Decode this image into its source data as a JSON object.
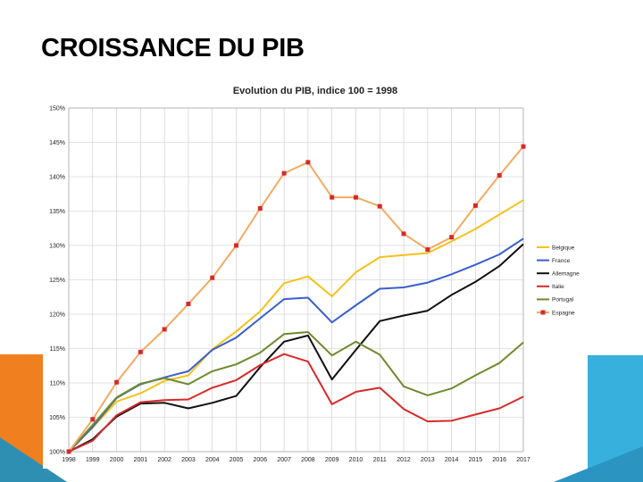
{
  "slide": {
    "title": "CROISSANCE DU PIB"
  },
  "chart_data": {
    "type": "line",
    "title": "Evolution du PIB, indice 100 = 1998",
    "xlabel": "",
    "ylabel": "",
    "ylim": [
      100,
      150
    ],
    "y_ticks": [
      "100%",
      "105%",
      "110%",
      "115%",
      "120%",
      "125%",
      "130%",
      "135%",
      "140%",
      "145%",
      "150%"
    ],
    "grid": true,
    "legend_position": "right",
    "categories": [
      "1998",
      "1999",
      "2000",
      "2001",
      "2002",
      "2003",
      "2004",
      "2005",
      "2006",
      "2007",
      "2008",
      "2009",
      "2010",
      "2011",
      "2012",
      "2013",
      "2014",
      "2015",
      "2016",
      "2017"
    ],
    "series": [
      {
        "name": "Belgique",
        "color": "#f5c21b",
        "marker": "none",
        "values": [
          100,
          103.5,
          107.3,
          108.5,
          110.3,
          111.1,
          114.9,
          117.5,
          120.4,
          124.5,
          125.5,
          122.6,
          126.1,
          128.3,
          128.6,
          128.9,
          130.6,
          132.4,
          134.5,
          136.6
        ]
      },
      {
        "name": "France",
        "color": "#3a5fcd",
        "marker": "none",
        "values": [
          100,
          103.6,
          107.8,
          109.8,
          110.8,
          111.7,
          114.8,
          116.6,
          119.4,
          122.2,
          122.4,
          118.8,
          121.3,
          123.7,
          123.9,
          124.6,
          125.8,
          127.2,
          128.7,
          131
        ]
      },
      {
        "name": "Allemagne",
        "color": "#111111",
        "marker": "none",
        "values": [
          100,
          101.8,
          105.1,
          107,
          107.1,
          106.3,
          107.1,
          108.1,
          112.3,
          116,
          116.9,
          110.5,
          114.8,
          119,
          119.8,
          120.5,
          122.8,
          124.7,
          127,
          130.2
        ]
      },
      {
        "name": "Italie",
        "color": "#d62a2a",
        "marker": "none",
        "values": [
          100,
          101.6,
          105.3,
          107.2,
          107.5,
          107.6,
          109.3,
          110.4,
          112.6,
          114.2,
          113.1,
          106.9,
          108.7,
          109.3,
          106.2,
          104.4,
          104.5,
          105.4,
          106.3,
          108
        ]
      },
      {
        "name": "Portugal",
        "color": "#6f8a2e",
        "marker": "none",
        "values": [
          100,
          103.9,
          107.9,
          109.9,
          110.7,
          109.8,
          111.7,
          112.7,
          114.4,
          117.1,
          117.4,
          114,
          116,
          114.1,
          109.5,
          108.2,
          109.2,
          111.1,
          112.9,
          115.9
        ]
      },
      {
        "name": "Espagne",
        "color": "#f2ab62",
        "marker": "square",
        "marker_color": "#d62a2a",
        "values": [
          100,
          104.7,
          110.1,
          114.5,
          117.8,
          121.5,
          125.3,
          130,
          135.4,
          140.5,
          142.1,
          137,
          137,
          135.7,
          131.7,
          129.4,
          131.2,
          135.8,
          140.2,
          144.4
        ]
      }
    ]
  }
}
